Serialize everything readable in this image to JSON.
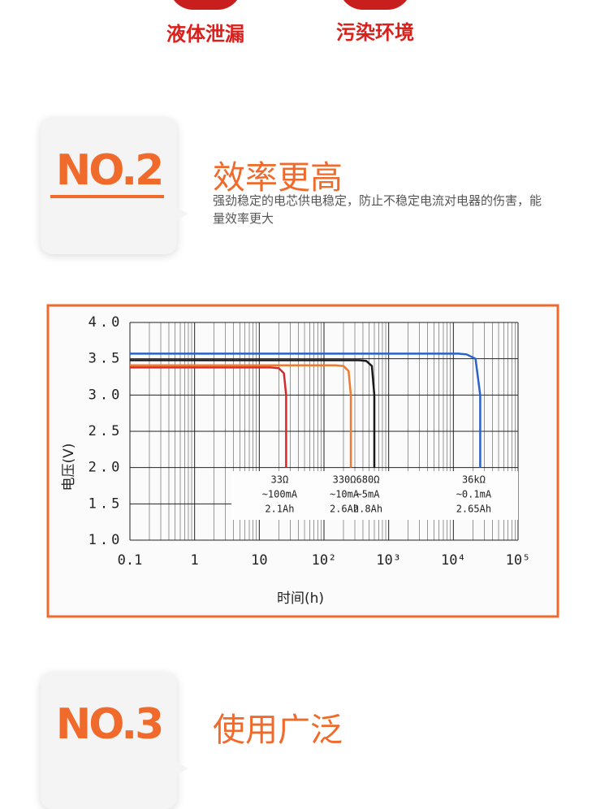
{
  "top_labels": [
    "液体泄漏",
    "污染环境"
  ],
  "sections": [
    {
      "badge": "NO.2",
      "title": "效率更高",
      "description": "强劲稳定的电芯供电稳定，防止不稳定电流对电器的伤害，能量效率更大"
    },
    {
      "badge": "NO.3",
      "title": "使用广泛"
    }
  ],
  "chart_data": {
    "type": "line",
    "xlabel": "时间(h)",
    "ylabel": "电压(V)",
    "xscale": "log",
    "grid": true,
    "xlim": [
      0.1,
      100000
    ],
    "ylim": [
      1.0,
      4.0
    ],
    "xticks": [
      {
        "value": 0.1,
        "label": "0.1"
      },
      1,
      10,
      {
        "value": 100,
        "label": "10²"
      },
      {
        "value": 1000,
        "label": "10³"
      },
      {
        "value": 10000,
        "label": "10⁴"
      },
      {
        "value": 100000,
        "label": "10⁵"
      }
    ],
    "xminorticks": [
      0.2,
      0.3,
      0.4,
      0.5,
      0.6,
      0.7,
      0.8,
      0.9,
      2,
      3,
      4,
      5,
      6,
      7,
      8,
      9,
      20,
      30,
      40,
      50,
      60,
      70,
      80,
      90,
      200,
      300,
      400,
      500,
      600,
      700,
      800,
      900,
      2000,
      3000,
      4000,
      5000,
      6000,
      7000,
      8000,
      9000,
      20000,
      30000,
      40000,
      50000,
      60000,
      70000,
      80000,
      90000
    ],
    "yticks": [
      {
        "value": 1,
        "label": "1.0"
      },
      1.5,
      {
        "value": 2,
        "label": "2.0"
      },
      2.5,
      {
        "value": 3,
        "label": "3.0"
      },
      3.5,
      {
        "value": 4,
        "label": "4.0"
      }
    ],
    "series": [
      {
        "name": "33Ω",
        "current": "~100mA",
        "capacity": "2.1Ah",
        "color": "#d42a2a",
        "x": [
          0.1,
          15,
          20,
          24,
          26,
          26
        ],
        "values": [
          3.38,
          3.38,
          3.37,
          3.3,
          3.0,
          2.0
        ]
      },
      {
        "name": "330Ω",
        "current": "~10mA",
        "capacity": "2.6Ah",
        "color": "#f07a30",
        "x": [
          0.1,
          150,
          200,
          240,
          260,
          260
        ],
        "values": [
          3.41,
          3.41,
          3.4,
          3.33,
          3.0,
          2.0
        ]
      },
      {
        "name": "680Ω",
        "current": "~5mA",
        "capacity": "2.8Ah",
        "color": "#1a1a1a",
        "x": [
          0.1,
          350,
          450,
          550,
          600,
          600
        ],
        "values": [
          3.48,
          3.48,
          3.47,
          3.4,
          3.0,
          2.0
        ]
      },
      {
        "name": "36kΩ",
        "current": "~0.1mA",
        "capacity": "2.65Ah",
        "color": "#2a62c8",
        "x": [
          0.1,
          12000,
          16000,
          22000,
          26000,
          26000
        ],
        "values": [
          3.57,
          3.57,
          3.56,
          3.5,
          3.0,
          2.0
        ]
      }
    ]
  }
}
